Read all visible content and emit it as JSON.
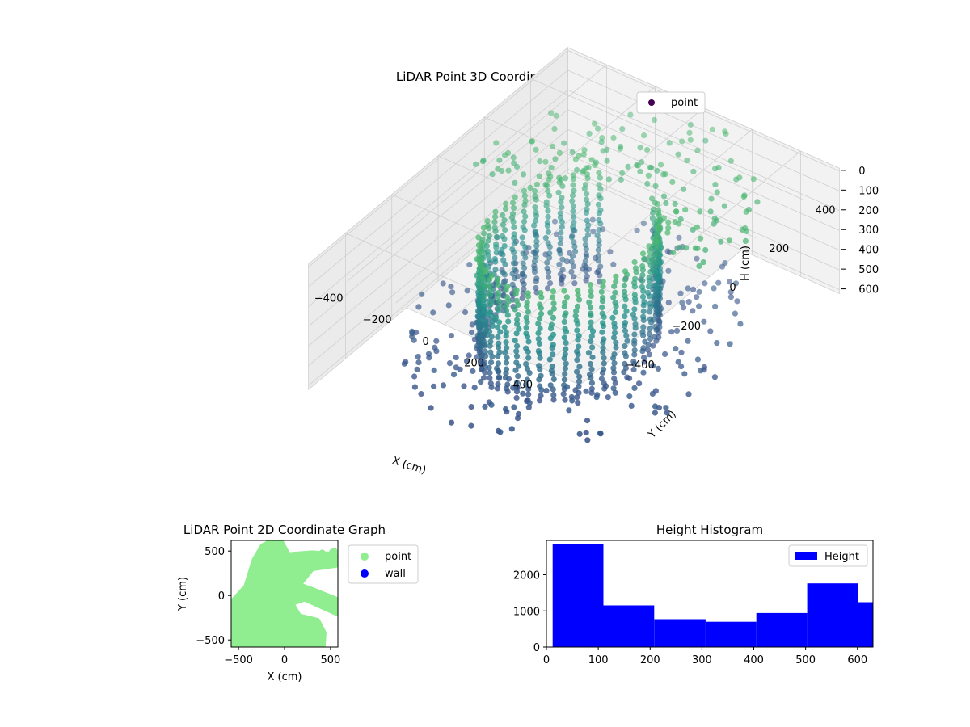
{
  "chart_data": [
    {
      "type": "scatter",
      "projection": "3d",
      "title": "LiDAR Point 3D Coordinate Graph",
      "xlabel": "X (cm)",
      "ylabel": "Y (cm)",
      "zlabel": "H (cm)",
      "xlim": [
        -560,
        560
      ],
      "ylim": [
        -560,
        560
      ],
      "zlim": [
        620,
        0
      ],
      "z_axis_inverted": true,
      "x_ticks": [
        "−400",
        "−200",
        "0",
        "200",
        "400"
      ],
      "y_ticks": [
        "−400",
        "−200",
        "0",
        "200",
        "400"
      ],
      "z_ticks": [
        "0",
        "100",
        "200",
        "300",
        "400",
        "500",
        "600"
      ],
      "colormap": "viridis",
      "grid": true,
      "legend": {
        "position": "upper-right",
        "entries": [
          "point"
        ]
      },
      "series": [
        {
          "name": "point",
          "color": "#440154",
          "structure": "cylindrical wall of vertical point columns, opening toward +Y, with scattered floor and ceiling points",
          "radius": 270,
          "height_range": [
            0,
            600
          ]
        }
      ]
    },
    {
      "type": "scatter",
      "title": "LiDAR Point 2D Coordinate Graph",
      "xlabel": "X (cm)",
      "ylabel": "Y (cm)",
      "xlim": [
        -580,
        580
      ],
      "ylim": [
        -580,
        620
      ],
      "x_ticks": [
        "−500",
        "0",
        "500"
      ],
      "y_ticks": [
        "−500",
        "0",
        "500"
      ],
      "legend": {
        "position": "outside-right",
        "entries": [
          "point",
          "wall"
        ]
      },
      "series": [
        {
          "name": "point",
          "color": "#90ee90"
        },
        {
          "name": "wall",
          "color": "#0000ff",
          "values": []
        }
      ]
    },
    {
      "type": "bar",
      "subtype": "histogram",
      "title": "Height Histogram",
      "xlabel": "",
      "ylabel": "",
      "xlim": [
        0,
        630
      ],
      "ylim": [
        0,
        2950
      ],
      "x_ticks": [
        "0",
        "100",
        "200",
        "300",
        "400",
        "500",
        "600"
      ],
      "y_ticks": [
        "0",
        "1000",
        "2000"
      ],
      "legend": {
        "position": "upper-right",
        "entries": [
          "Height"
        ]
      },
      "bins": [
        12,
        110,
        208,
        307,
        405,
        503,
        601,
        699
      ],
      "counts": [
        2850,
        1150,
        770,
        700,
        940,
        1760,
        1240
      ],
      "series": [
        {
          "name": "Height",
          "color": "#0000ff"
        }
      ]
    }
  ]
}
